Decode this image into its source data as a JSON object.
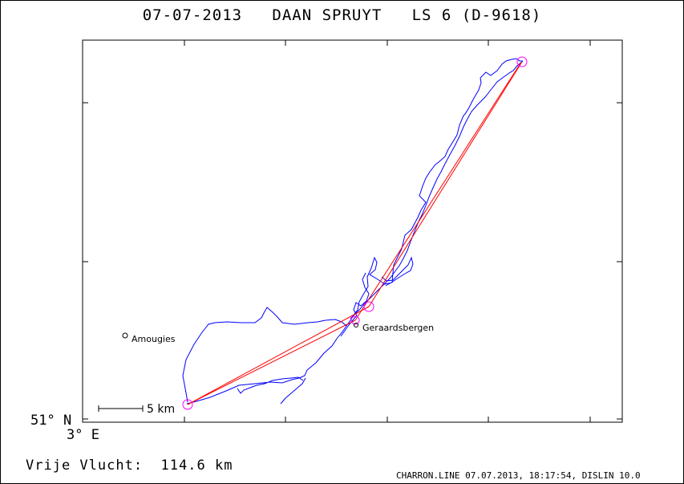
{
  "title": "07-07-2013   DAAN SPRUYT   LS 6 (D-9618)",
  "axes": {
    "lat_label": "51° N",
    "lon_label": "3° E"
  },
  "places": [
    {
      "name": "Amougies"
    },
    {
      "name": "Geraardsbergen"
    }
  ],
  "scale_bar": {
    "label": "5 km"
  },
  "flight": {
    "label": "Vrije Vlucht:",
    "distance": "114.6 km"
  },
  "footer": "CHARRON.LINE 07.07.2013, 18:17:54, DISLIN 10.0",
  "colors": {
    "track": "#0000ff",
    "task_line": "#ff0000",
    "turnpoint": "#ff00ff"
  }
}
